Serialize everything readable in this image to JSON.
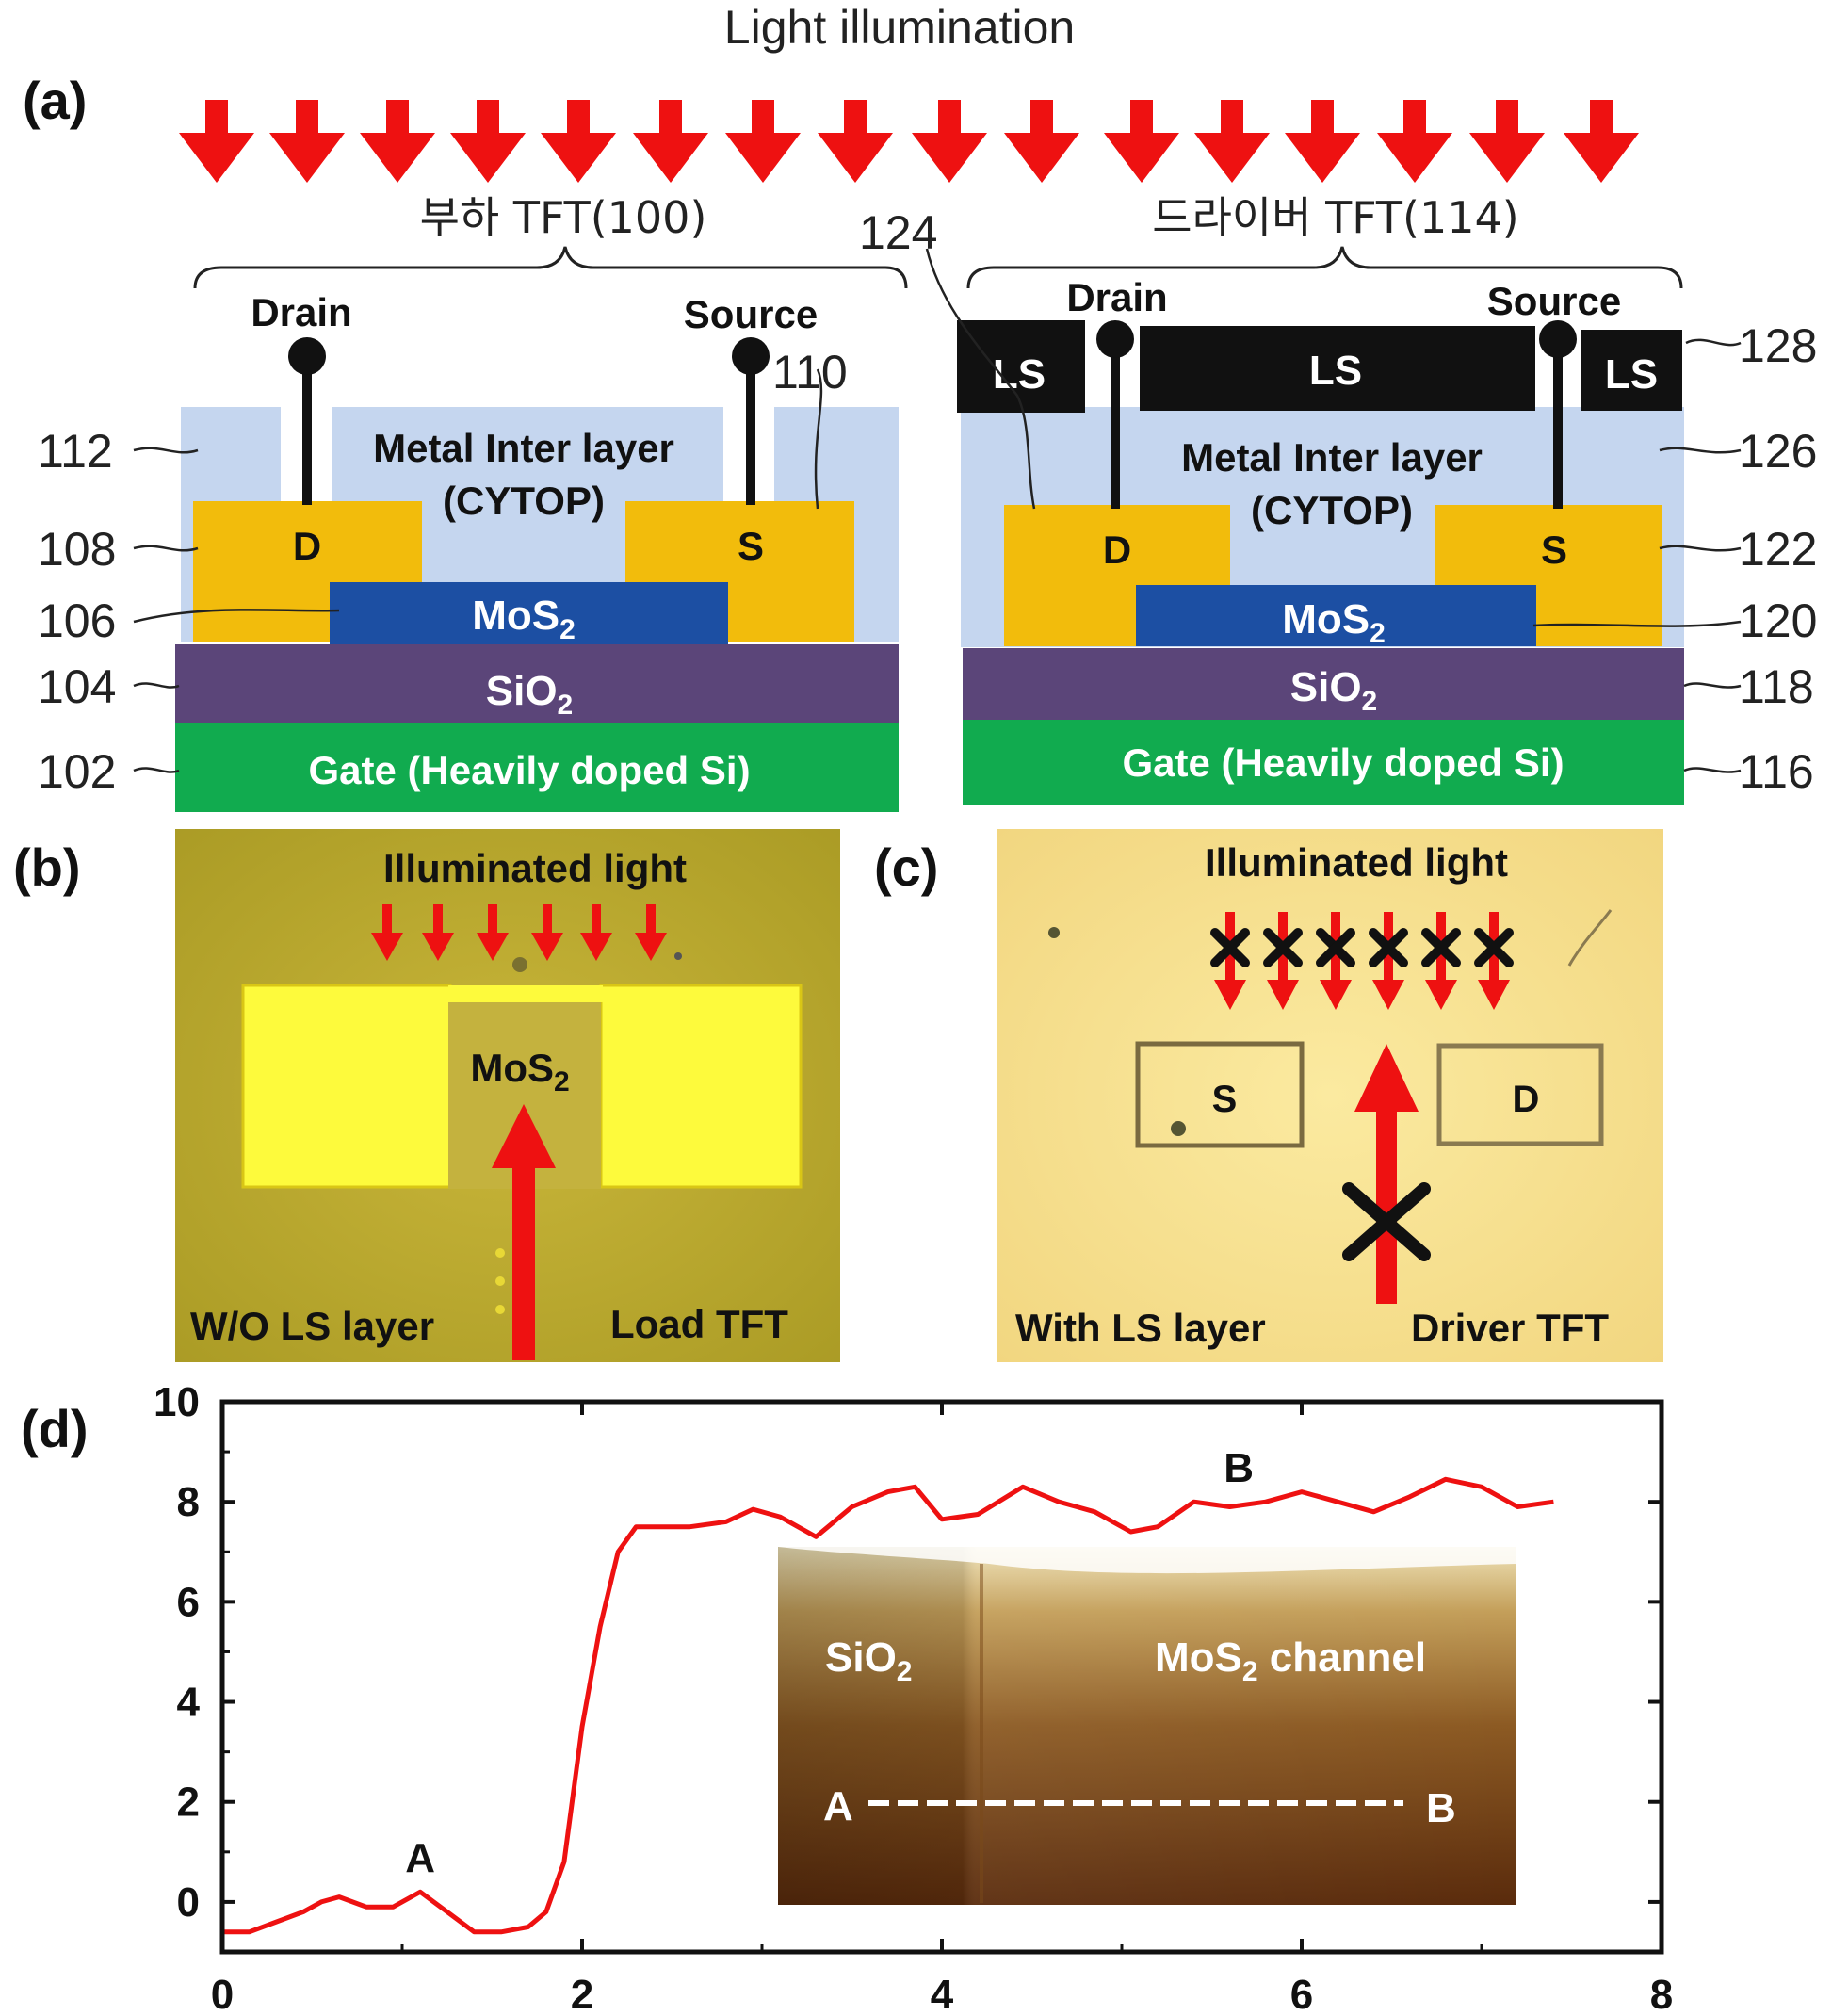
{
  "header": {
    "light_label": "Light illumination"
  },
  "panels": {
    "a": {
      "label": "(a)"
    },
    "b": {
      "label": "(b)",
      "illum_label": "Illuminated light",
      "mos2": "MoS",
      "mos2_sub": "2",
      "ls_label": "W/O LS layer",
      "tft_label": "Load TFT"
    },
    "c": {
      "label": "(c)",
      "illum_label": "Illuminated light",
      "s": "S",
      "d": "D",
      "ls_label": "With LS layer",
      "tft_label": "Driver TFT"
    },
    "d": {
      "label": "(d)"
    }
  },
  "load_tft": {
    "title": "부하 TFT(100)",
    "drain": "Drain",
    "source": "Source",
    "metal_layer": "Metal Inter layer",
    "cytop": "(CYTOP)",
    "d": "D",
    "s": "S",
    "mos2": "MoS",
    "mos2_sub": "2",
    "sio2": "SiO",
    "sio2_sub": "2",
    "gate": "Gate (Heavily doped Si)"
  },
  "driver_tft": {
    "title": "드라이버 TFT(114)",
    "drain": "Drain",
    "source": "Source",
    "ls": "LS",
    "metal_layer": "Metal Inter layer",
    "cytop": "(CYTOP)",
    "d": "D",
    "s": "S",
    "mos2": "MoS",
    "mos2_sub": "2",
    "sio2": "SiO",
    "sio2_sub": "2",
    "gate": "Gate (Heavily doped Si)"
  },
  "refs": {
    "r112": "112",
    "r108": "108",
    "r106": "106",
    "r104": "104",
    "r102": "102",
    "r110": "110",
    "r124": "124",
    "r128": "128",
    "r126": "126",
    "r122": "122",
    "r120": "120",
    "r118": "118",
    "r116": "116"
  },
  "inset": {
    "sio2": "SiO",
    "sio2_sub": "2",
    "mos2": "MoS",
    "mos2_sub": "2",
    "channel": " channel",
    "a": "A",
    "b": "B"
  },
  "colors": {
    "arrow": "#ee1111",
    "metal_layer": "#c5d6ef",
    "electrode": "#f2bc0c",
    "mos2": "#1c4fa3",
    "sio2": "#5b4579",
    "gate": "#11ab4f",
    "ls": "#111111"
  },
  "chart_data": {
    "type": "line",
    "xlim": [
      0,
      8
    ],
    "ylim": [
      -1,
      10
    ],
    "xticks": [
      "0",
      "2",
      "4",
      "6",
      "8"
    ],
    "yticks": [
      "0",
      "2",
      "4",
      "6",
      "8",
      "10"
    ],
    "annotations": [
      {
        "text": "A",
        "x": 1.1,
        "y": 0.6
      },
      {
        "text": "B",
        "x": 5.65,
        "y": 8.4
      }
    ],
    "series": [
      {
        "x": [
          0,
          0.15,
          0.3,
          0.45,
          0.55,
          0.65,
          0.8,
          0.95,
          1.1,
          1.25,
          1.4,
          1.55,
          1.7,
          1.8,
          1.9,
          2.0,
          2.1,
          2.2,
          2.3,
          2.4,
          2.6,
          2.8,
          2.95,
          3.1,
          3.3,
          3.5,
          3.7,
          3.85,
          4.0,
          4.2,
          4.45,
          4.65,
          4.85,
          5.05,
          5.2,
          5.4,
          5.6,
          5.8,
          6.0,
          6.2,
          6.4,
          6.6,
          6.8,
          7.0,
          7.2,
          7.4
        ],
        "y": [
          -0.6,
          -0.6,
          -0.4,
          -0.2,
          0.0,
          0.1,
          -0.1,
          -0.1,
          0.2,
          -0.2,
          -0.6,
          -0.6,
          -0.5,
          -0.2,
          0.8,
          3.5,
          5.5,
          7.0,
          7.5,
          7.5,
          7.5,
          7.6,
          7.85,
          7.7,
          7.3,
          7.9,
          8.2,
          8.3,
          7.65,
          7.75,
          8.3,
          8.0,
          7.8,
          7.4,
          7.5,
          8.0,
          7.9,
          8.0,
          8.2,
          8.0,
          7.8,
          8.1,
          8.45,
          8.3,
          7.9,
          8.0
        ]
      }
    ]
  }
}
